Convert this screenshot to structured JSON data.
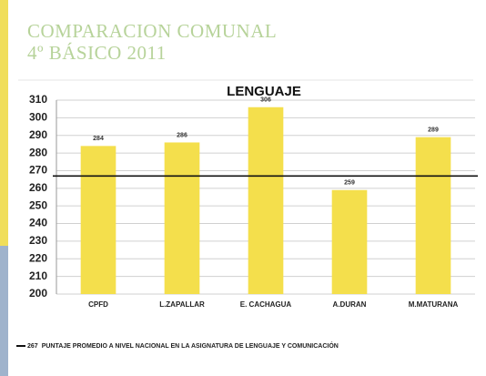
{
  "header": {
    "title": "COMPARACION COMUNAL",
    "subtitle": "4º BÁSICO 2011"
  },
  "chart_data": {
    "type": "bar",
    "title": "LENGUAJE",
    "categories": [
      "CPFD",
      "L.ZAPALLAR",
      "E. CACHAGUA",
      "A.DURAN",
      "M.MATURANA"
    ],
    "values": [
      284,
      286,
      306,
      259,
      289
    ],
    "color": "#f4df4c",
    "ylim": [
      200,
      310
    ],
    "yticks": [
      200,
      210,
      220,
      230,
      240,
      250,
      260,
      270,
      280,
      290,
      300,
      310
    ],
    "grid": true,
    "reference": {
      "value": 267,
      "label": "PUNTAJE PROMEDIO A NIVEL NACIONAL EN LA ASIGNATURA DE LENGUAJE Y COMUNICACIÓN"
    }
  }
}
